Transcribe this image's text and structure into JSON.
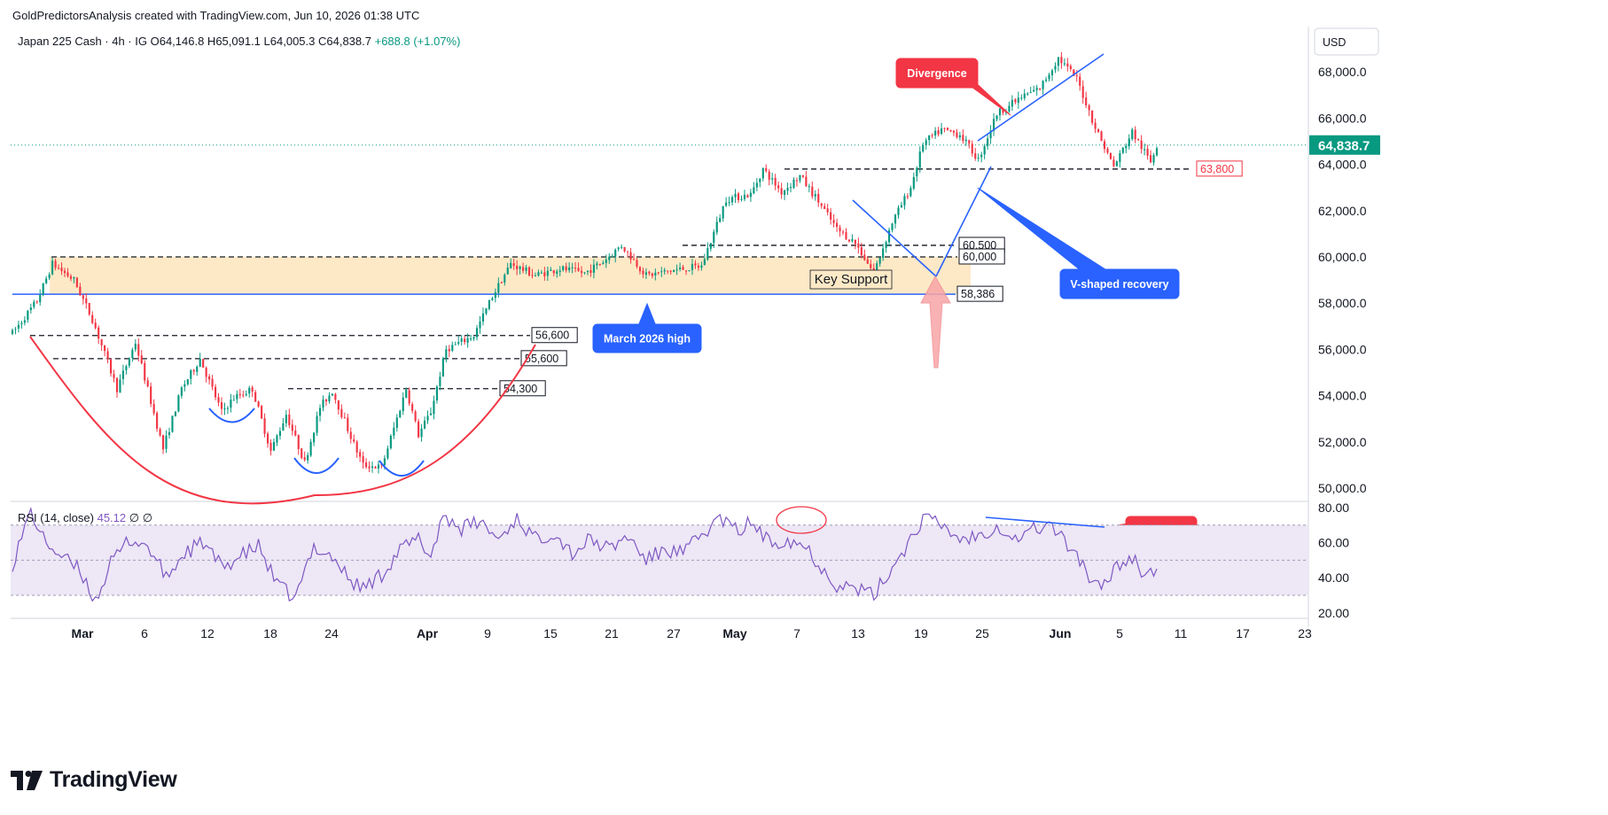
{
  "header": {
    "caption": "GoldPredictorsAnalysis created with TradingView.com, Jun 10, 2026 01:38 UTC"
  },
  "legend": {
    "symbol": "Japan 225 Cash · 4h · IG",
    "open": "O64,146.8",
    "high": "H65,091.1",
    "low": "L64,005.3",
    "close": "C64,838.7",
    "change": "+688.8 (+1.07%)"
  },
  "currency": "USD",
  "price_label": "64,838.7",
  "rsi_legend": {
    "label": "RSI (14, close)",
    "value": "45.12",
    "extra": "∅ ∅"
  },
  "footer": {
    "brand": "TradingView",
    "logo_icon": "tradingview-logo-icon"
  },
  "colors": {
    "up": "#089981",
    "down": "#f23645",
    "support_zone": "#fde9c6",
    "rsi_line": "#7e57c2",
    "rsi_band": "#ede7f6",
    "trend_blue": "#2962ff",
    "curve_red": "#f23645",
    "callout_red": "#f23645",
    "callout_blue": "#2962ff",
    "price_tag": "#089981",
    "arrow_pink": "#f8a5a8"
  },
  "chart_data": [
    {
      "type": "candlestick",
      "timeframe": "4h",
      "title": "Japan 225 Cash · 4h · IG",
      "ylim": [
        49500,
        69200
      ],
      "y_ticks": [
        "50,000.0",
        "52,000.0",
        "54,000.0",
        "56,000.0",
        "58,000.0",
        "60,000.0",
        "62,000.0",
        "64,000.0",
        "66,000.0",
        "68,000.0"
      ],
      "x_ticks": [
        "Mar",
        "6",
        "12",
        "18",
        "24",
        "Apr",
        "9",
        "15",
        "21",
        "27",
        "May",
        "7",
        "13",
        "19",
        "25",
        "Jun",
        "5",
        "11",
        "17",
        "23"
      ],
      "last_price": 64838.7,
      "key_points": [
        {
          "bar": 0,
          "price": 56700
        },
        {
          "bar": 8,
          "price": 58100
        },
        {
          "bar": 13,
          "price": 59700
        },
        {
          "bar": 20,
          "price": 59000
        },
        {
          "bar": 26,
          "price": 57300
        },
        {
          "bar": 34,
          "price": 54300
        },
        {
          "bar": 40,
          "price": 56300
        },
        {
          "bar": 49,
          "price": 51700
        },
        {
          "bar": 55,
          "price": 54300
        },
        {
          "bar": 61,
          "price": 55600
        },
        {
          "bar": 68,
          "price": 53300
        },
        {
          "bar": 72,
          "price": 53900
        },
        {
          "bar": 78,
          "price": 54300
        },
        {
          "bar": 84,
          "price": 51600
        },
        {
          "bar": 89,
          "price": 53200
        },
        {
          "bar": 95,
          "price": 51100
        },
        {
          "bar": 100,
          "price": 53500
        },
        {
          "bar": 104,
          "price": 54200
        },
        {
          "bar": 111,
          "price": 51900
        },
        {
          "bar": 114,
          "price": 51000
        },
        {
          "bar": 120,
          "price": 50900
        },
        {
          "bar": 128,
          "price": 54300
        },
        {
          "bar": 132,
          "price": 52300
        },
        {
          "bar": 136,
          "price": 53300
        },
        {
          "bar": 141,
          "price": 56000
        },
        {
          "bar": 150,
          "price": 56600
        },
        {
          "bar": 156,
          "price": 58300
        },
        {
          "bar": 162,
          "price": 59700
        },
        {
          "bar": 170,
          "price": 59200
        },
        {
          "bar": 178,
          "price": 59500
        },
        {
          "bar": 186,
          "price": 59300
        },
        {
          "bar": 192,
          "price": 59800
        },
        {
          "bar": 198,
          "price": 60500
        },
        {
          "bar": 206,
          "price": 59200
        },
        {
          "bar": 214,
          "price": 59400
        },
        {
          "bar": 224,
          "price": 59600
        },
        {
          "bar": 232,
          "price": 62500
        },
        {
          "bar": 240,
          "price": 62700
        },
        {
          "bar": 244,
          "price": 63800
        },
        {
          "bar": 250,
          "price": 62800
        },
        {
          "bar": 256,
          "price": 63500
        },
        {
          "bar": 262,
          "price": 62400
        },
        {
          "bar": 268,
          "price": 61200
        },
        {
          "bar": 274,
          "price": 60600
        },
        {
          "bar": 280,
          "price": 59300
        },
        {
          "bar": 286,
          "price": 61500
        },
        {
          "bar": 292,
          "price": 63000
        },
        {
          "bar": 296,
          "price": 64900
        },
        {
          "bar": 302,
          "price": 65500
        },
        {
          "bar": 308,
          "price": 65300
        },
        {
          "bar": 314,
          "price": 64200
        },
        {
          "bar": 320,
          "price": 66200
        },
        {
          "bar": 328,
          "price": 66900
        },
        {
          "bar": 334,
          "price": 67300
        },
        {
          "bar": 340,
          "price": 68600
        },
        {
          "bar": 346,
          "price": 67700
        },
        {
          "bar": 352,
          "price": 65600
        },
        {
          "bar": 358,
          "price": 63900
        },
        {
          "bar": 364,
          "price": 65400
        },
        {
          "bar": 370,
          "price": 64100
        },
        {
          "bar": 372,
          "price": 64838.7
        }
      ],
      "horizontal_levels": [
        {
          "label": "63,800",
          "value": 63800
        },
        {
          "label": "60,500",
          "value": 60500
        },
        {
          "label": "60,000",
          "value": 60000
        },
        {
          "label": "58,386",
          "value": 58386
        },
        {
          "label": "56,600",
          "value": 56600
        },
        {
          "label": "55,600",
          "value": 55600
        },
        {
          "label": "54,300",
          "value": 54300
        }
      ],
      "support_zone": {
        "label": "Key Support",
        "from": 58386,
        "to": 60000
      },
      "annotations": [
        "Divergence",
        "V-shaped recovery",
        "March 2026 high",
        "Key Support"
      ]
    },
    {
      "type": "line",
      "title": "RSI (14, close)",
      "ylim": [
        17,
        82
      ],
      "y_ticks": [
        "20.00",
        "40.00",
        "60.00",
        "80.00"
      ],
      "last_value": 45.12,
      "band": [
        30,
        70
      ],
      "middle": 50,
      "values": [
        [
          0,
          48
        ],
        [
          6,
          78
        ],
        [
          10,
          62
        ],
        [
          16,
          52
        ],
        [
          22,
          44
        ],
        [
          27,
          27
        ],
        [
          32,
          48
        ],
        [
          38,
          62
        ],
        [
          44,
          58
        ],
        [
          50,
          40
        ],
        [
          56,
          54
        ],
        [
          62,
          60
        ],
        [
          68,
          46
        ],
        [
          74,
          52
        ],
        [
          80,
          58
        ],
        [
          86,
          36
        ],
        [
          92,
          28
        ],
        [
          98,
          58
        ],
        [
          104,
          52
        ],
        [
          110,
          38
        ],
        [
          114,
          34
        ],
        [
          120,
          42
        ],
        [
          126,
          56
        ],
        [
          132,
          62
        ],
        [
          136,
          52
        ],
        [
          140,
          76
        ],
        [
          146,
          68
        ],
        [
          152,
          72
        ],
        [
          158,
          62
        ],
        [
          164,
          74
        ],
        [
          170,
          62
        ],
        [
          176,
          66
        ],
        [
          182,
          54
        ],
        [
          188,
          62
        ],
        [
          194,
          56
        ],
        [
          200,
          64
        ],
        [
          206,
          50
        ],
        [
          212,
          56
        ],
        [
          218,
          54
        ],
        [
          224,
          64
        ],
        [
          230,
          74
        ],
        [
          236,
          66
        ],
        [
          240,
          72
        ],
        [
          246,
          60
        ],
        [
          252,
          62
        ],
        [
          258,
          58
        ],
        [
          262,
          48
        ],
        [
          268,
          36
        ],
        [
          274,
          34
        ],
        [
          280,
          30
        ],
        [
          286,
          46
        ],
        [
          292,
          62
        ],
        [
          296,
          74
        ],
        [
          302,
          70
        ],
        [
          308,
          62
        ],
        [
          314,
          64
        ],
        [
          320,
          70
        ],
        [
          326,
          62
        ],
        [
          332,
          68
        ],
        [
          338,
          70
        ],
        [
          342,
          60
        ],
        [
          346,
          54
        ],
        [
          350,
          40
        ],
        [
          354,
          32
        ],
        [
          358,
          46
        ],
        [
          364,
          52
        ],
        [
          368,
          42
        ],
        [
          372,
          45.12
        ]
      ]
    }
  ]
}
